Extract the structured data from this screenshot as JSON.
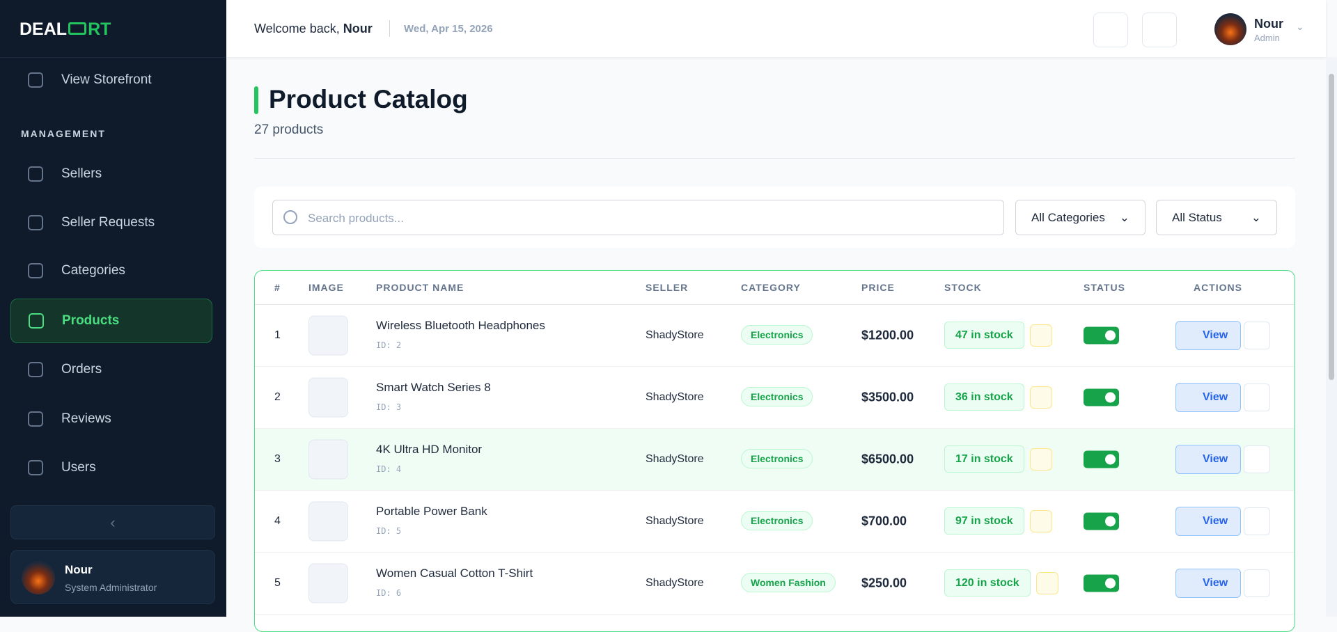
{
  "sidebar": {
    "logo": [
      "DEAL",
      "RT"
    ],
    "storefront": "View Storefront",
    "section": "MANAGEMENT",
    "nav": [
      "Sellers",
      "Seller Requests",
      "Categories",
      "Products",
      "Orders",
      "Reviews",
      "Users"
    ],
    "active": 3,
    "user": {
      "name": "Nour",
      "role": "System Administrator"
    }
  },
  "header": {
    "welcome": "Welcome back,",
    "name": "Nour",
    "date": "Wed, Apr 15, 2026",
    "user": {
      "name": "Nour",
      "role": "Admin"
    }
  },
  "page": {
    "title": "Product Catalog",
    "count": "27 products"
  },
  "filters": {
    "search": "Search products...",
    "category": "All Categories",
    "status": "All Status"
  },
  "table": {
    "headers": [
      "#",
      "IMAGE",
      "PRODUCT NAME",
      "SELLER",
      "CATEGORY",
      "PRICE",
      "STOCK",
      "STATUS",
      "ACTIONS"
    ],
    "view": "View",
    "rows": [
      {
        "n": "1",
        "name": "Wireless Bluetooth Headphones",
        "id": "ID: 2",
        "seller": "ShadyStore",
        "category": "Electronics",
        "price": "$1200.00",
        "stock": "47 in stock"
      },
      {
        "n": "2",
        "name": "Smart Watch Series 8",
        "id": "ID: 3",
        "seller": "ShadyStore",
        "category": "Electronics",
        "price": "$3500.00",
        "stock": "36 in stock"
      },
      {
        "n": "3",
        "name": "4K Ultra HD Monitor",
        "id": "ID: 4",
        "seller": "ShadyStore",
        "category": "Electronics",
        "price": "$6500.00",
        "stock": "17 in stock"
      },
      {
        "n": "4",
        "name": "Portable Power Bank",
        "id": "ID: 5",
        "seller": "ShadyStore",
        "category": "Electronics",
        "price": "$700.00",
        "stock": "97 in stock"
      },
      {
        "n": "5",
        "name": "Women Casual Cotton T-Shirt",
        "id": "ID: 6",
        "seller": "ShadyStore",
        "category": "Women Fashion",
        "price": "$250.00",
        "stock": "120 in stock"
      }
    ]
  }
}
